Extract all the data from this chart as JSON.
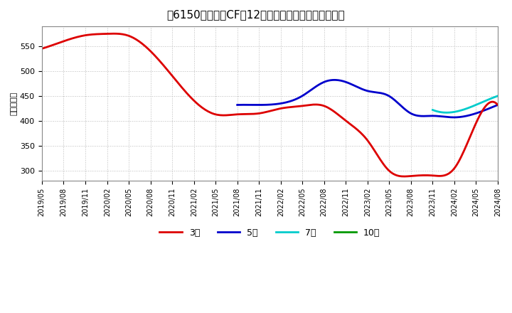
{
  "title": "［6150］　営業CFの12か月移動合計の平均値の推移",
  "ylabel": "（百万円）",
  "ylim": [
    280,
    590
  ],
  "yticks": [
    300,
    350,
    400,
    450,
    500,
    550
  ],
  "background_color": "#ffffff",
  "plot_bg_color": "#ffffff",
  "grid_color": "#aaaaaa",
  "legend": [
    {
      "label": "3年",
      "color": "#dd0000"
    },
    {
      "label": "5年",
      "color": "#0000cc"
    },
    {
      "label": "7年",
      "color": "#00cccc"
    },
    {
      "label": "10年",
      "color": "#009900"
    }
  ],
  "series_3yr": {
    "color": "#dd0000",
    "dates": [
      "2019-05",
      "2019-08",
      "2019-11",
      "2020-02",
      "2020-05",
      "2020-08",
      "2020-11",
      "2021-02",
      "2021-05",
      "2021-08",
      "2021-11",
      "2022-02",
      "2022-05",
      "2022-08",
      "2022-11",
      "2023-02",
      "2023-05",
      "2023-08",
      "2023-11",
      "2024-02",
      "2024-05",
      "2024-08"
    ],
    "values": [
      545,
      560,
      572,
      575,
      571,
      540,
      490,
      440,
      413,
      413,
      415,
      425,
      430,
      430,
      400,
      360,
      300,
      289,
      290,
      305,
      395,
      432
    ]
  },
  "series_5yr": {
    "color": "#0000cc",
    "dates": [
      "2021-08",
      "2021-11",
      "2022-02",
      "2022-05",
      "2022-08",
      "2022-11",
      "2023-02",
      "2023-05",
      "2023-08",
      "2023-11",
      "2024-02",
      "2024-05",
      "2024-08"
    ],
    "values": [
      432,
      432,
      435,
      450,
      478,
      478,
      460,
      450,
      415,
      410,
      407,
      415,
      432
    ]
  },
  "series_7yr": {
    "color": "#00cccc",
    "dates": [
      "2023-11",
      "2024-02",
      "2024-05",
      "2024-08"
    ],
    "values": [
      422,
      418,
      432,
      450
    ]
  },
  "series_10yr": {
    "color": "#009900",
    "dates": [],
    "values": []
  }
}
